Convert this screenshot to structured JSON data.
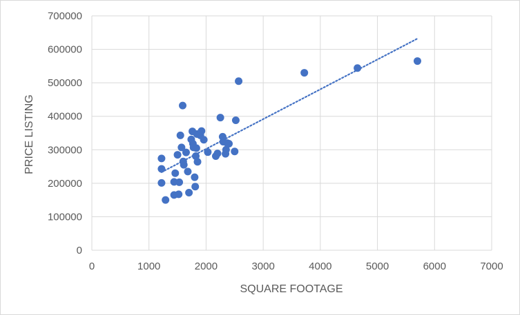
{
  "chart_data": {
    "type": "scatter",
    "title": "",
    "xlabel": "SQUARE FOOTAGE",
    "ylabel": "PRICE LISTING",
    "xlim": [
      0,
      7000
    ],
    "ylim": [
      0,
      700000
    ],
    "x_ticks": [
      0,
      1000,
      2000,
      3000,
      4000,
      5000,
      6000,
      7000
    ],
    "y_ticks": [
      0,
      100000,
      200000,
      300000,
      400000,
      500000,
      600000,
      700000
    ],
    "grid": true,
    "legend": "none",
    "marker_color": "#4472c4",
    "trendline": {
      "type": "linear",
      "style": "dotted",
      "color": "#4472c4",
      "x": [
        1220,
        5700
      ],
      "y": [
        233000,
        632000
      ]
    },
    "points": [
      {
        "x": 1220,
        "y": 274000
      },
      {
        "x": 1220,
        "y": 243000
      },
      {
        "x": 1220,
        "y": 201000
      },
      {
        "x": 1290,
        "y": 150000
      },
      {
        "x": 1440,
        "y": 165000
      },
      {
        "x": 1440,
        "y": 204000
      },
      {
        "x": 1460,
        "y": 230000
      },
      {
        "x": 1500,
        "y": 285000
      },
      {
        "x": 1520,
        "y": 167000
      },
      {
        "x": 1530,
        "y": 203000
      },
      {
        "x": 1550,
        "y": 343000
      },
      {
        "x": 1570,
        "y": 307000
      },
      {
        "x": 1590,
        "y": 432000
      },
      {
        "x": 1600,
        "y": 265000
      },
      {
        "x": 1610,
        "y": 255000
      },
      {
        "x": 1650,
        "y": 292000
      },
      {
        "x": 1680,
        "y": 235000
      },
      {
        "x": 1700,
        "y": 172000
      },
      {
        "x": 1740,
        "y": 331000
      },
      {
        "x": 1760,
        "y": 355000
      },
      {
        "x": 1770,
        "y": 318000
      },
      {
        "x": 1780,
        "y": 307000
      },
      {
        "x": 1800,
        "y": 218000
      },
      {
        "x": 1810,
        "y": 190000
      },
      {
        "x": 1820,
        "y": 281000
      },
      {
        "x": 1830,
        "y": 305000
      },
      {
        "x": 1840,
        "y": 347000
      },
      {
        "x": 1850,
        "y": 264000
      },
      {
        "x": 1900,
        "y": 343000
      },
      {
        "x": 1920,
        "y": 356000
      },
      {
        "x": 1960,
        "y": 330000
      },
      {
        "x": 2030,
        "y": 293000
      },
      {
        "x": 2170,
        "y": 281000
      },
      {
        "x": 2200,
        "y": 289000
      },
      {
        "x": 2250,
        "y": 396000
      },
      {
        "x": 2290,
        "y": 339000
      },
      {
        "x": 2300,
        "y": 324000
      },
      {
        "x": 2340,
        "y": 288000
      },
      {
        "x": 2350,
        "y": 300000
      },
      {
        "x": 2370,
        "y": 320000
      },
      {
        "x": 2400,
        "y": 318000
      },
      {
        "x": 2500,
        "y": 295000
      },
      {
        "x": 2520,
        "y": 388000
      },
      {
        "x": 2570,
        "y": 505000
      },
      {
        "x": 3720,
        "y": 530000
      },
      {
        "x": 4650,
        "y": 544000
      },
      {
        "x": 5700,
        "y": 565000
      }
    ]
  }
}
